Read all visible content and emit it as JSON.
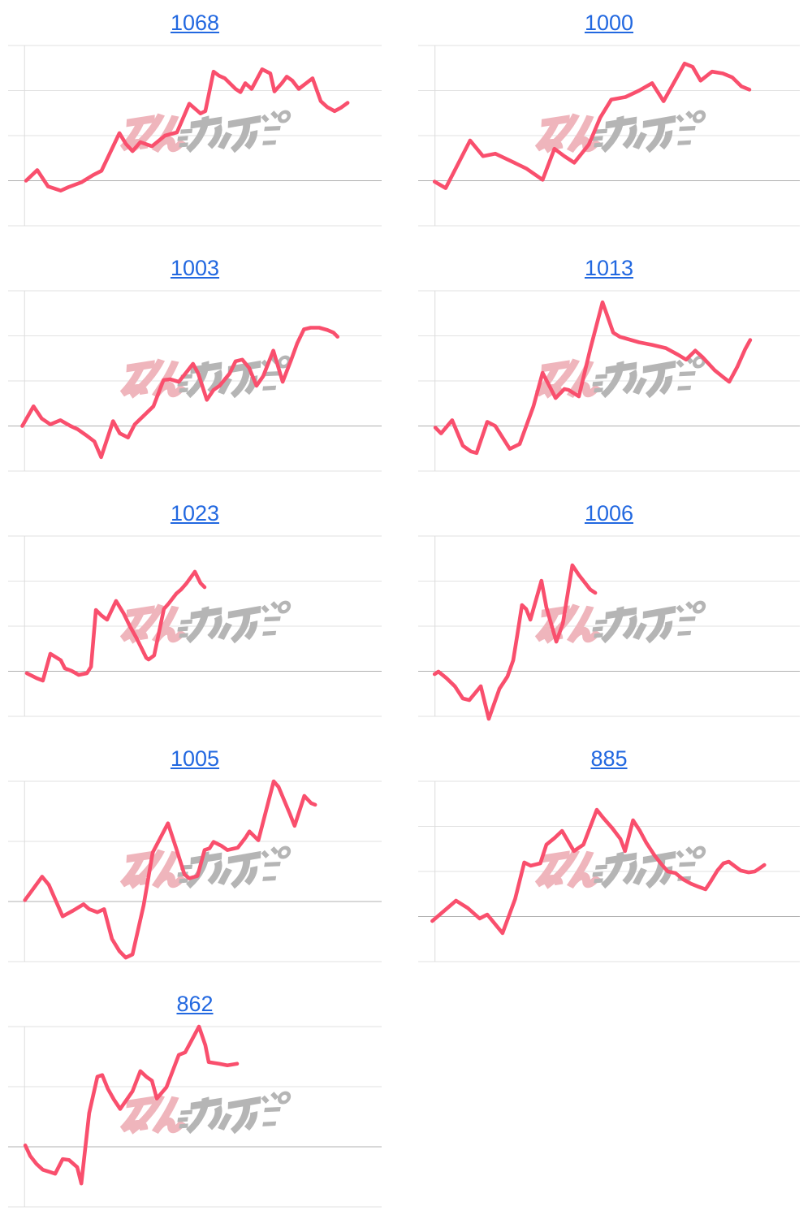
{
  "style": {
    "line_color": "#f94f6d",
    "grid_color": "#e2e2e2",
    "baseline_color": "#b0b0b0",
    "axis_color": "#dcdcdc",
    "title_color": "#2268e0",
    "watermark_pink": "#efb5bc",
    "watermark_gray": "#b5b5b5",
    "axis_x_pct": 4.4
  },
  "watermark": {
    "pink_text": "みん",
    "gray_text": "かぶ"
  },
  "layout": {
    "columns": 2
  },
  "chart_data": [
    {
      "type": "line",
      "title": "1068",
      "gridline_count": 5,
      "baseline_gridline_index": 3,
      "note": "points are [x%, y%] of plot area, y measured from top; line starts on darker baseline gridline",
      "points_pct": [
        [
          4.8,
          75.0
        ],
        [
          7.8,
          69.1
        ],
        [
          10.7,
          78.2
        ],
        [
          14.1,
          80.5
        ],
        [
          16.1,
          78.6
        ],
        [
          19.6,
          75.9
        ],
        [
          22.8,
          71.8
        ],
        [
          25.0,
          69.5
        ],
        [
          29.8,
          48.6
        ],
        [
          31.5,
          54.5
        ],
        [
          33.3,
          58.6
        ],
        [
          35.4,
          53.6
        ],
        [
          38.5,
          55.9
        ],
        [
          42.0,
          50.0
        ],
        [
          45.2,
          48.2
        ],
        [
          48.5,
          32.3
        ],
        [
          50.0,
          35.0
        ],
        [
          51.5,
          37.7
        ],
        [
          52.8,
          36.4
        ],
        [
          55.0,
          14.5
        ],
        [
          56.5,
          16.8
        ],
        [
          58.0,
          18.2
        ],
        [
          60.9,
          24.1
        ],
        [
          62.2,
          25.9
        ],
        [
          63.5,
          20.9
        ],
        [
          65.2,
          24.1
        ],
        [
          68.0,
          13.2
        ],
        [
          70.2,
          15.5
        ],
        [
          71.3,
          25.5
        ],
        [
          73.3,
          20.9
        ],
        [
          74.6,
          17.3
        ],
        [
          76.1,
          19.5
        ],
        [
          77.8,
          24.1
        ],
        [
          79.8,
          20.9
        ],
        [
          81.5,
          18.2
        ],
        [
          83.7,
          30.9
        ],
        [
          85.4,
          34.1
        ],
        [
          87.4,
          36.4
        ],
        [
          89.1,
          34.5
        ],
        [
          90.9,
          31.8
        ]
      ]
    },
    {
      "type": "line",
      "title": "1000",
      "gridline_count": 5,
      "baseline_gridline_index": 3,
      "points_pct": [
        [
          4.3,
          75.5
        ],
        [
          7.2,
          79.1
        ],
        [
          13.6,
          52.7
        ],
        [
          17.0,
          61.4
        ],
        [
          20.2,
          60.0
        ],
        [
          23.4,
          63.2
        ],
        [
          28.3,
          68.2
        ],
        [
          32.6,
          74.5
        ],
        [
          35.7,
          57.3
        ],
        [
          38.3,
          61.4
        ],
        [
          40.9,
          65.0
        ],
        [
          44.7,
          55.0
        ],
        [
          47.7,
          40.0
        ],
        [
          50.6,
          30.0
        ],
        [
          54.3,
          28.6
        ],
        [
          57.9,
          25.0
        ],
        [
          61.3,
          20.9
        ],
        [
          64.3,
          30.9
        ],
        [
          69.8,
          10.0
        ],
        [
          71.9,
          11.8
        ],
        [
          74.0,
          19.5
        ],
        [
          77.0,
          14.5
        ],
        [
          79.8,
          15.5
        ],
        [
          82.3,
          17.7
        ],
        [
          84.7,
          22.7
        ],
        [
          86.8,
          24.5
        ]
      ]
    },
    {
      "type": "line",
      "title": "1003",
      "gridline_count": 5,
      "baseline_gridline_index": 3,
      "points_pct": [
        [
          3.8,
          75.0
        ],
        [
          6.8,
          64.1
        ],
        [
          9.0,
          70.9
        ],
        [
          11.3,
          74.1
        ],
        [
          14.0,
          71.8
        ],
        [
          16.7,
          75.0
        ],
        [
          18.6,
          76.8
        ],
        [
          20.8,
          80.0
        ],
        [
          23.1,
          83.6
        ],
        [
          24.9,
          92.3
        ],
        [
          28.1,
          72.3
        ],
        [
          29.9,
          79.1
        ],
        [
          32.1,
          81.4
        ],
        [
          33.9,
          74.1
        ],
        [
          36.2,
          69.5
        ],
        [
          38.9,
          64.1
        ],
        [
          41.6,
          49.5
        ],
        [
          43.4,
          49.1
        ],
        [
          45.7,
          50.5
        ],
        [
          48.0,
          44.5
        ],
        [
          49.5,
          40.5
        ],
        [
          50.9,
          45.9
        ],
        [
          53.2,
          60.5
        ],
        [
          55.0,
          55.0
        ],
        [
          56.6,
          52.7
        ],
        [
          59.3,
          45.9
        ],
        [
          60.9,
          39.1
        ],
        [
          62.7,
          38.2
        ],
        [
          64.5,
          42.7
        ],
        [
          66.5,
          52.7
        ],
        [
          68.3,
          47.3
        ],
        [
          71.0,
          33.2
        ],
        [
          73.5,
          50.5
        ],
        [
          75.8,
          38.2
        ],
        [
          77.4,
          29.1
        ],
        [
          79.2,
          21.4
        ],
        [
          81.0,
          20.5
        ],
        [
          83.3,
          20.5
        ],
        [
          85.5,
          21.8
        ],
        [
          87.1,
          23.2
        ],
        [
          88.2,
          25.5
        ]
      ]
    },
    {
      "type": "line",
      "title": "1013",
      "gridline_count": 5,
      "baseline_gridline_index": 3,
      "points_pct": [
        [
          4.5,
          75.9
        ],
        [
          6.0,
          79.1
        ],
        [
          8.9,
          71.8
        ],
        [
          11.7,
          85.9
        ],
        [
          13.8,
          89.1
        ],
        [
          15.3,
          90.0
        ],
        [
          18.1,
          72.7
        ],
        [
          20.2,
          75.0
        ],
        [
          24.0,
          87.7
        ],
        [
          26.6,
          85.0
        ],
        [
          30.2,
          64.1
        ],
        [
          32.6,
          45.5
        ],
        [
          36.0,
          59.5
        ],
        [
          38.3,
          54.5
        ],
        [
          39.4,
          55.0
        ],
        [
          42.1,
          58.6
        ],
        [
          45.1,
          32.3
        ],
        [
          48.3,
          6.4
        ],
        [
          49.6,
          14.1
        ],
        [
          51.1,
          23.2
        ],
        [
          52.8,
          25.5
        ],
        [
          54.3,
          26.4
        ],
        [
          57.9,
          28.6
        ],
        [
          61.3,
          30.0
        ],
        [
          64.9,
          31.8
        ],
        [
          68.1,
          35.5
        ],
        [
          70.2,
          38.2
        ],
        [
          72.6,
          33.2
        ],
        [
          74.5,
          36.8
        ],
        [
          77.7,
          44.1
        ],
        [
          79.8,
          47.7
        ],
        [
          81.5,
          50.5
        ],
        [
          83.6,
          42.3
        ],
        [
          85.7,
          32.3
        ],
        [
          87.0,
          27.3
        ]
      ]
    },
    {
      "type": "line",
      "title": "1023",
      "gridline_count": 5,
      "baseline_gridline_index": 3,
      "points_pct": [
        [
          5.0,
          76.1
        ],
        [
          7.6,
          78.8
        ],
        [
          9.3,
          80.2
        ],
        [
          11.3,
          65.3
        ],
        [
          12.4,
          66.7
        ],
        [
          14.1,
          68.9
        ],
        [
          15.2,
          73.4
        ],
        [
          17.0,
          74.8
        ],
        [
          18.9,
          77.0
        ],
        [
          21.1,
          76.1
        ],
        [
          22.2,
          72.5
        ],
        [
          23.5,
          41.0
        ],
        [
          25.0,
          44.1
        ],
        [
          26.5,
          46.4
        ],
        [
          28.9,
          36.0
        ],
        [
          30.9,
          42.8
        ],
        [
          32.6,
          50.0
        ],
        [
          34.3,
          56.3
        ],
        [
          37.0,
          67.6
        ],
        [
          37.6,
          68.5
        ],
        [
          39.1,
          66.2
        ],
        [
          41.7,
          40.5
        ],
        [
          43.0,
          37.4
        ],
        [
          45.0,
          32.0
        ],
        [
          46.3,
          29.7
        ],
        [
          47.8,
          26.1
        ],
        [
          50.0,
          19.8
        ],
        [
          51.5,
          26.1
        ],
        [
          52.6,
          28.4
        ]
      ]
    },
    {
      "type": "line",
      "title": "1006",
      "gridline_count": 5,
      "baseline_gridline_index": 3,
      "points_pct": [
        [
          4.3,
          76.6
        ],
        [
          5.3,
          75.2
        ],
        [
          7.4,
          78.8
        ],
        [
          9.6,
          83.3
        ],
        [
          11.7,
          90.1
        ],
        [
          13.4,
          91.0
        ],
        [
          16.4,
          83.3
        ],
        [
          18.5,
          101.4
        ],
        [
          21.3,
          84.7
        ],
        [
          23.4,
          77.9
        ],
        [
          24.9,
          68.9
        ],
        [
          26.0,
          54.5
        ],
        [
          27.2,
          38.3
        ],
        [
          28.3,
          40.5
        ],
        [
          29.4,
          46.4
        ],
        [
          32.3,
          24.8
        ],
        [
          33.6,
          39.6
        ],
        [
          36.2,
          58.6
        ],
        [
          37.9,
          48.6
        ],
        [
          40.4,
          16.2
        ],
        [
          42.1,
          21.6
        ],
        [
          45.1,
          29.7
        ],
        [
          46.4,
          31.5
        ]
      ]
    },
    {
      "type": "line",
      "title": "1005",
      "gridline_count": 4,
      "baseline_gridline_index": 2,
      "points_pct": [
        [
          4.5,
          65.9
        ],
        [
          9.1,
          52.9
        ],
        [
          10.9,
          57.4
        ],
        [
          14.6,
          74.9
        ],
        [
          17.4,
          71.7
        ],
        [
          20.2,
          68.2
        ],
        [
          21.7,
          70.9
        ],
        [
          23.9,
          72.6
        ],
        [
          25.7,
          70.9
        ],
        [
          27.8,
          87.4
        ],
        [
          29.8,
          94.2
        ],
        [
          31.5,
          97.8
        ],
        [
          33.3,
          96.0
        ],
        [
          36.3,
          68.6
        ],
        [
          38.7,
          39.5
        ],
        [
          42.8,
          23.3
        ],
        [
          45.0,
          37.2
        ],
        [
          47.2,
          51.6
        ],
        [
          48.5,
          53.8
        ],
        [
          50.7,
          52.5
        ],
        [
          52.6,
          38.1
        ],
        [
          53.9,
          37.2
        ],
        [
          55.0,
          33.6
        ],
        [
          57.2,
          35.9
        ],
        [
          58.7,
          38.1
        ],
        [
          61.5,
          36.8
        ],
        [
          63.5,
          31.4
        ],
        [
          64.6,
          27.8
        ],
        [
          67.0,
          32.7
        ],
        [
          71.1,
          0.0
        ],
        [
          72.4,
          3.1
        ],
        [
          75.4,
          17.9
        ],
        [
          76.7,
          24.7
        ],
        [
          79.3,
          8.1
        ],
        [
          81.1,
          12.1
        ],
        [
          82.2,
          13.0
        ]
      ]
    },
    {
      "type": "line",
      "title": "885",
      "gridline_count": 5,
      "baseline_gridline_index": 3,
      "points_pct": [
        [
          3.7,
          77.5
        ],
        [
          9.9,
          66.2
        ],
        [
          13.0,
          70.3
        ],
        [
          16.1,
          76.1
        ],
        [
          18.1,
          73.9
        ],
        [
          22.1,
          84.2
        ],
        [
          25.4,
          65.3
        ],
        [
          27.8,
          45.0
        ],
        [
          29.5,
          46.8
        ],
        [
          32.0,
          45.5
        ],
        [
          33.6,
          35.1
        ],
        [
          35.7,
          31.5
        ],
        [
          37.7,
          27.5
        ],
        [
          40.8,
          38.7
        ],
        [
          43.3,
          35.1
        ],
        [
          46.8,
          15.8
        ],
        [
          48.5,
          20.3
        ],
        [
          50.9,
          26.1
        ],
        [
          53.0,
          32.0
        ],
        [
          54.2,
          38.7
        ],
        [
          56.3,
          21.6
        ],
        [
          58.1,
          27.5
        ],
        [
          59.8,
          34.2
        ],
        [
          61.9,
          41.0
        ],
        [
          63.9,
          46.4
        ],
        [
          65.4,
          50.0
        ],
        [
          67.4,
          50.9
        ],
        [
          69.5,
          54.5
        ],
        [
          71.5,
          56.8
        ],
        [
          73.6,
          58.6
        ],
        [
          75.3,
          59.9
        ],
        [
          76.7,
          55.4
        ],
        [
          78.4,
          49.5
        ],
        [
          80.0,
          45.5
        ],
        [
          81.4,
          44.6
        ],
        [
          83.1,
          47.3
        ],
        [
          84.5,
          49.5
        ],
        [
          86.6,
          50.5
        ],
        [
          88.2,
          50.0
        ],
        [
          89.5,
          48.2
        ],
        [
          90.7,
          46.4
        ]
      ]
    },
    {
      "type": "line",
      "title": "862",
      "gridline_count": 4,
      "baseline_gridline_index": 2,
      "points_pct": [
        [
          4.6,
          65.9
        ],
        [
          5.9,
          71.7
        ],
        [
          7.6,
          76.2
        ],
        [
          9.3,
          79.4
        ],
        [
          11.3,
          80.7
        ],
        [
          12.6,
          81.6
        ],
        [
          14.6,
          73.5
        ],
        [
          16.3,
          74.0
        ],
        [
          18.5,
          78.0
        ],
        [
          19.6,
          87.0
        ],
        [
          21.7,
          48.0
        ],
        [
          23.9,
          27.8
        ],
        [
          25.2,
          26.9
        ],
        [
          26.7,
          34.5
        ],
        [
          28.3,
          40.4
        ],
        [
          30.0,
          45.7
        ],
        [
          33.3,
          35.9
        ],
        [
          35.4,
          24.7
        ],
        [
          37.0,
          27.8
        ],
        [
          38.5,
          30.0
        ],
        [
          39.8,
          39.9
        ],
        [
          42.4,
          33.6
        ],
        [
          45.7,
          15.7
        ],
        [
          47.4,
          14.3
        ],
        [
          51.1,
          0.0
        ],
        [
          52.8,
          10.3
        ],
        [
          53.7,
          19.7
        ],
        [
          56.5,
          20.6
        ],
        [
          58.7,
          21.5
        ],
        [
          61.3,
          20.6
        ]
      ]
    }
  ]
}
